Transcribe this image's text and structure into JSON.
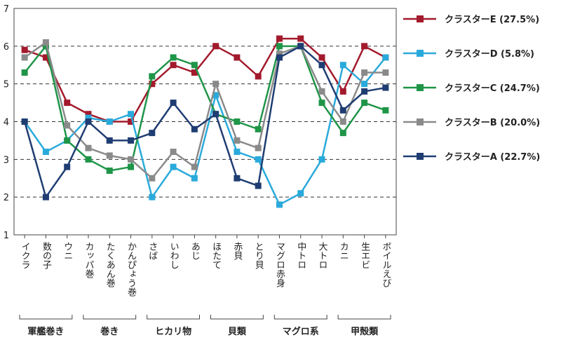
{
  "chart_data": {
    "type": "line",
    "categories": [
      "イクラ",
      "数の子",
      "ウニ",
      "カッパ巻",
      "たくあん巻",
      "かんぴょう巻",
      "さば",
      "いわし",
      "あじ",
      "ほたて",
      "赤貝",
      "とり貝",
      "マグロ赤身",
      "中トロ",
      "大トロ",
      "カニ",
      "生エビ",
      "ボイルえび"
    ],
    "groups": [
      "軍艦巻き",
      "巻き",
      "ヒカリ物",
      "貝類",
      "マグロ系",
      "甲殻類"
    ],
    "series": [
      {
        "name": "クラスターE (27.5%)",
        "color": "#a31a2c",
        "values": [
          5.9,
          5.7,
          4.5,
          4.2,
          4.0,
          4.0,
          5.0,
          5.5,
          5.3,
          6.0,
          5.7,
          5.2,
          6.2,
          6.2,
          5.7,
          4.8,
          6.0,
          5.7
        ]
      },
      {
        "name": "クラスターD (5.8%)",
        "color": "#2aaadb",
        "values": [
          4.0,
          3.2,
          3.5,
          4.1,
          4.0,
          4.2,
          2.0,
          2.8,
          2.5,
          4.7,
          3.2,
          3.0,
          1.8,
          2.1,
          3.0,
          5.5,
          5.0,
          5.7
        ]
      },
      {
        "name": "クラスターC (24.7%)",
        "color": "#1f9548",
        "values": [
          5.3,
          6.0,
          3.5,
          3.0,
          2.7,
          2.8,
          5.2,
          5.7,
          5.5,
          4.2,
          4.0,
          3.8,
          6.0,
          6.0,
          4.5,
          3.7,
          4.5,
          4.3
        ]
      },
      {
        "name": "クラスターB (20.0%)",
        "color": "#8a8a8a",
        "values": [
          5.7,
          6.1,
          3.9,
          3.3,
          3.1,
          3.0,
          2.5,
          3.2,
          2.8,
          5.0,
          3.5,
          3.3,
          5.8,
          6.0,
          4.8,
          4.0,
          5.3,
          5.3
        ]
      },
      {
        "name": "クラスターA (22.7%)",
        "color": "#1f3d72",
        "values": [
          4.0,
          2.0,
          2.8,
          4.0,
          3.5,
          3.5,
          3.7,
          4.5,
          3.8,
          4.2,
          2.5,
          2.3,
          5.7,
          6.0,
          5.5,
          4.3,
          4.8,
          4.9
        ]
      }
    ],
    "ylim": [
      1,
      7
    ],
    "yticks": [
      1,
      2,
      3,
      4,
      5,
      6,
      7
    ],
    "grid": true,
    "legend": "right"
  }
}
